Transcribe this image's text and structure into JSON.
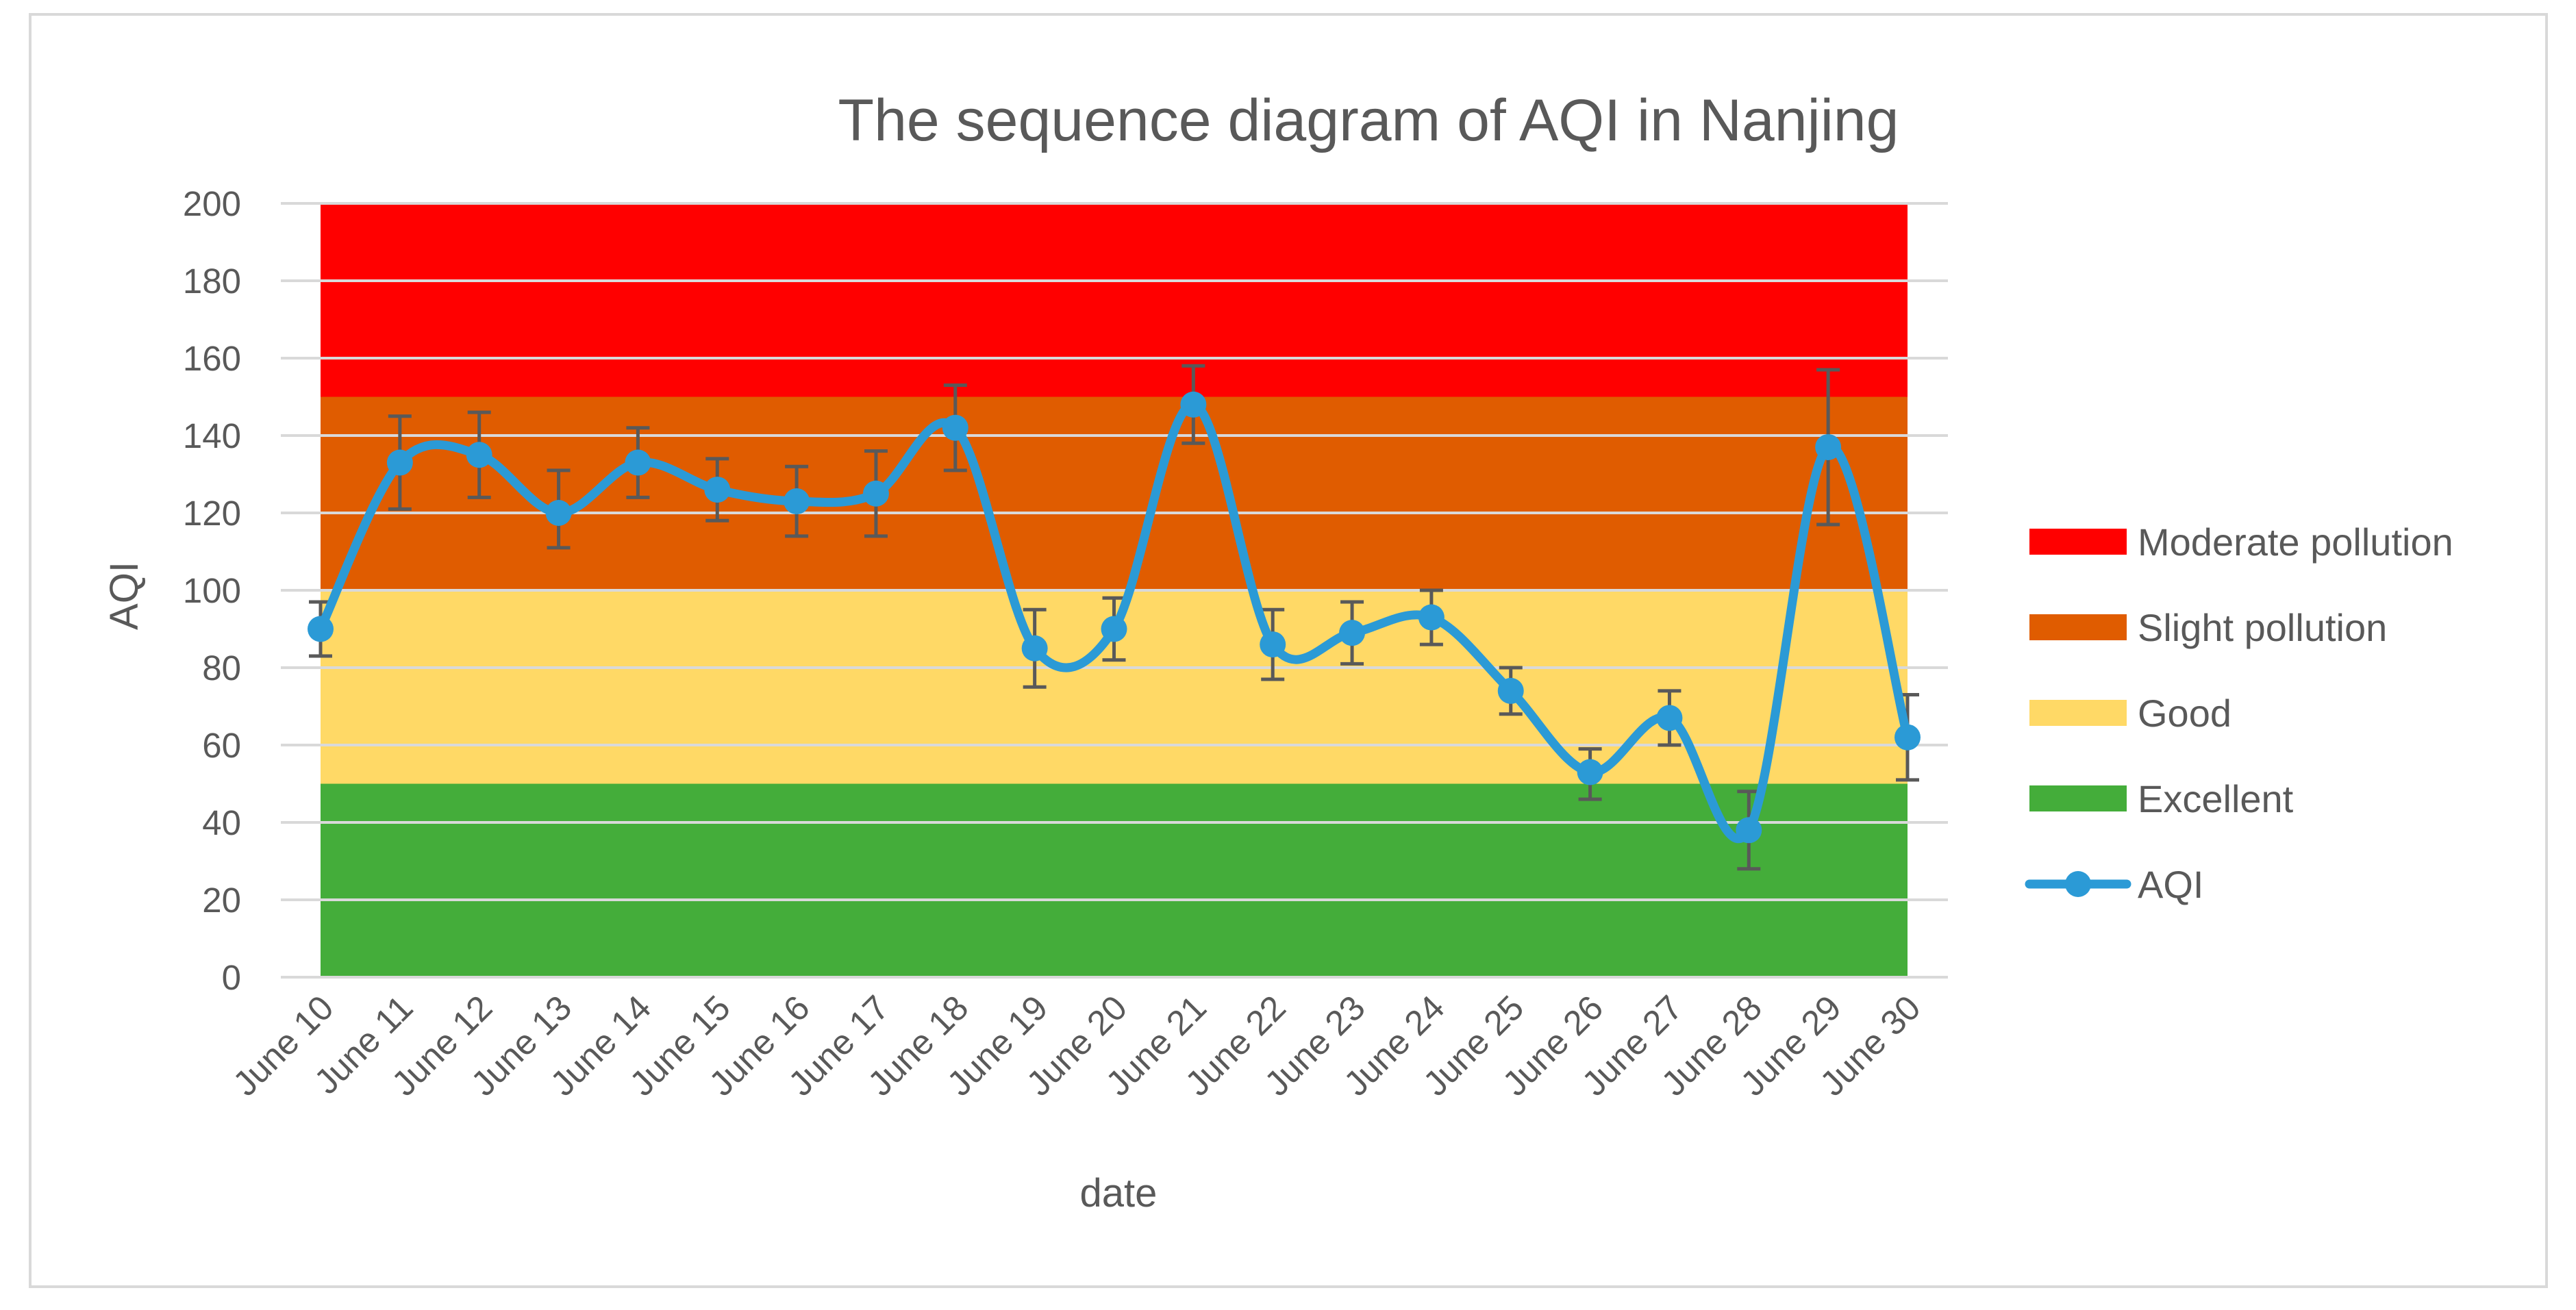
{
  "chart_data": {
    "type": "line",
    "title": "The sequence diagram of AQI in Nanjing",
    "xlabel": "date",
    "ylabel": "AQI",
    "ylim": [
      0,
      200
    ],
    "yticks": [
      0,
      20,
      40,
      60,
      80,
      100,
      120,
      140,
      160,
      180,
      200
    ],
    "grid": true,
    "legend_position": "right",
    "categories": [
      "June 10",
      "June 11",
      "June 12",
      "June 13",
      "June 14",
      "June 15",
      "June 16",
      "June 17",
      "June 18",
      "June 19",
      "June 20",
      "June 21",
      "June 22",
      "June 23",
      "June 24",
      "June 25",
      "June 26",
      "June 27",
      "June 28",
      "June 29",
      "June 30"
    ],
    "bands": [
      {
        "name": "Excellent",
        "from": 0,
        "to": 50,
        "color": "#44ad3a"
      },
      {
        "name": "Good",
        "from": 50,
        "to": 100,
        "color": "#ffd966"
      },
      {
        "name": "Slight pollution",
        "from": 100,
        "to": 150,
        "color": "#e05c00"
      },
      {
        "name": "Moderate pollution",
        "from": 150,
        "to": 200,
        "color": "#ff0000"
      }
    ],
    "legend_order": [
      "Moderate pollution",
      "Slight pollution",
      "Good",
      "Excellent",
      "AQI"
    ],
    "series": [
      {
        "name": "AQI",
        "color": "#2b9ad6",
        "values": [
          90,
          133,
          135,
          120,
          133,
          126,
          123,
          125,
          142,
          85,
          90,
          148,
          86,
          89,
          93,
          74,
          53,
          67,
          38,
          137,
          62
        ],
        "error_low": [
          83,
          121,
          124,
          111,
          124,
          118,
          114,
          114,
          131,
          75,
          82,
          138,
          77,
          81,
          86,
          68,
          46,
          60,
          28,
          117,
          51
        ],
        "error_high": [
          97,
          145,
          146,
          131,
          142,
          134,
          132,
          136,
          153,
          95,
          98,
          158,
          95,
          97,
          100,
          80,
          59,
          74,
          48,
          157,
          73
        ]
      }
    ]
  }
}
